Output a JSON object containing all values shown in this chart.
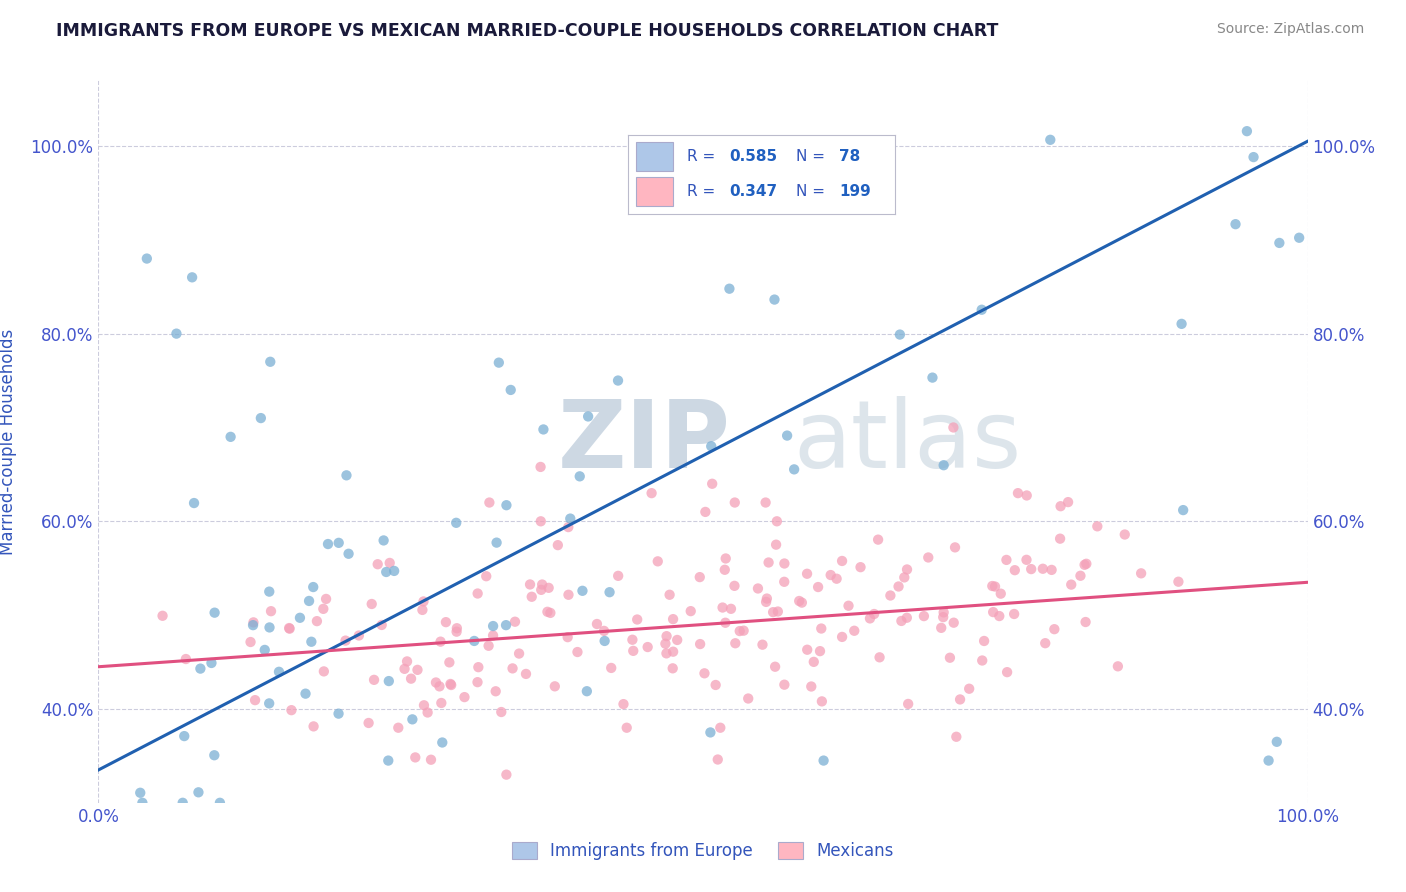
{
  "title": "IMMIGRANTS FROM EUROPE VS MEXICAN MARRIED-COUPLE HOUSEHOLDS CORRELATION CHART",
  "source": "Source: ZipAtlas.com",
  "ylabel": "Married-couple Households",
  "watermark_part1": "ZIP",
  "watermark_part2": "atlas",
  "blue_R": 0.585,
  "blue_N": 78,
  "pink_R": 0.347,
  "pink_N": 199,
  "blue_scatter_color": "#7bafd4",
  "pink_scatter_color": "#f4a0b8",
  "blue_line_color": "#2060b0",
  "pink_line_color": "#e05080",
  "legend_blue_face": "#aec7e8",
  "legend_pink_face": "#ffb6c1",
  "legend_text_color": "#3355bb",
  "legend_value_color": "#2060c0",
  "tick_color": "#4455cc",
  "grid_color": "#ccccdd",
  "title_color": "#1a1a3a",
  "source_color": "#888888",
  "ylabel_color": "#3355bb",
  "xlim": [
    0.0,
    1.0
  ],
  "ylim": [
    0.3,
    1.07
  ],
  "ytick_values": [
    0.4,
    0.6,
    0.8,
    1.0
  ],
  "ytick_labels": [
    "40.0%",
    "60.0%",
    "80.0%",
    "100.0%"
  ],
  "xtick_values": [
    0.0,
    1.0
  ],
  "xtick_labels": [
    "0.0%",
    "100.0%"
  ],
  "bottom_legend": [
    "Immigrants from Europe",
    "Mexicans"
  ],
  "blue_line_endpoints_x": [
    0.0,
    1.0
  ],
  "blue_line_endpoints_y": [
    0.335,
    1.005
  ],
  "pink_line_endpoints_x": [
    0.0,
    1.0
  ],
  "pink_line_endpoints_y": [
    0.445,
    0.535
  ]
}
